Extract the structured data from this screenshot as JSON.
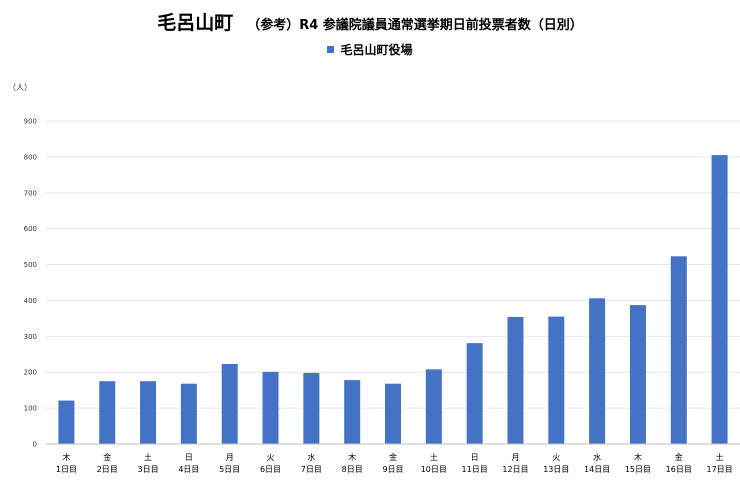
{
  "chart_data": {
    "type": "bar",
    "title": "毛呂山町",
    "subtitle": "（参考）R4 参議院議員通常選挙期日前投票者数（日別）",
    "unit_label": "（人）",
    "categories": [
      {
        "day": "木",
        "date": "1日目"
      },
      {
        "day": "金",
        "date": "2日目"
      },
      {
        "day": "土",
        "date": "3日目"
      },
      {
        "day": "日",
        "date": "4日目"
      },
      {
        "day": "月",
        "date": "5日目"
      },
      {
        "day": "火",
        "date": "6日目"
      },
      {
        "day": "水",
        "date": "7日目"
      },
      {
        "day": "木",
        "date": "8日目"
      },
      {
        "day": "金",
        "date": "9日目"
      },
      {
        "day": "土",
        "date": "10日目"
      },
      {
        "day": "日",
        "date": "11日目"
      },
      {
        "day": "月",
        "date": "12日目"
      },
      {
        "day": "火",
        "date": "13日目"
      },
      {
        "day": "水",
        "date": "14日目"
      },
      {
        "day": "木",
        "date": "15日目"
      },
      {
        "day": "金",
        "date": "16日目"
      },
      {
        "day": "土",
        "date": "17日目"
      }
    ],
    "series": [
      {
        "name": "毛呂山町役場",
        "color": "#4472C4",
        "values": [
          121,
          175,
          175,
          168,
          223,
          201,
          198,
          178,
          168,
          208,
          281,
          354,
          355,
          406,
          387,
          523,
          805
        ]
      }
    ],
    "ylim": [
      0,
      900
    ],
    "yticks": [
      0,
      100,
      200,
      300,
      400,
      500,
      600,
      700,
      800,
      900
    ],
    "grid": true,
    "legend_position": "top-center"
  }
}
